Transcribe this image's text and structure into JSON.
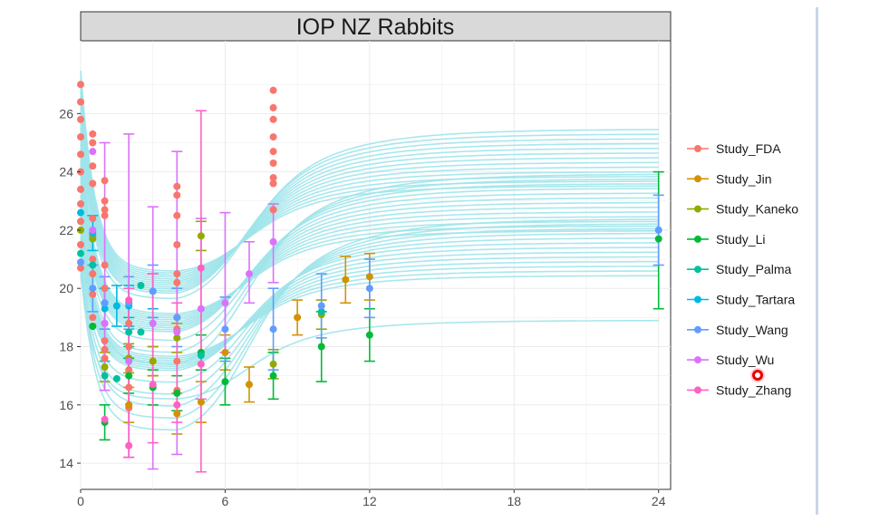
{
  "chart_data": {
    "type": "scatter",
    "title": "IOP NZ Rabbits",
    "xlabel": "",
    "ylabel": "",
    "xlim": [
      0,
      24.5
    ],
    "ylim": [
      13.1,
      28.5
    ],
    "x_ticks": [
      0,
      6,
      12,
      18,
      24
    ],
    "y_ticks": [
      14,
      16,
      18,
      20,
      22,
      24,
      26
    ],
    "grid": true,
    "legend_position": "right",
    "colors": {
      "Study_FDA": "#F8766D",
      "Study_Jin": "#D39200",
      "Study_Kaneko": "#93AA00",
      "Study_Li": "#00BA38",
      "Study_Palma": "#00C19F",
      "Study_Tartara": "#00B9E3",
      "Study_Wang": "#619CFF",
      "Study_Wu": "#DB72FB",
      "Study_Zhang": "#FF61C3",
      "curves": "#9fe4ea"
    },
    "series": [
      {
        "name": "Study_FDA",
        "points": [
          {
            "x": 0,
            "y": 27.0
          },
          {
            "x": 0,
            "y": 26.4
          },
          {
            "x": 0,
            "y": 25.8
          },
          {
            "x": 0,
            "y": 25.2
          },
          {
            "x": 0,
            "y": 24.6
          },
          {
            "x": 0,
            "y": 24.0
          },
          {
            "x": 0,
            "y": 23.4
          },
          {
            "x": 0,
            "y": 22.9
          },
          {
            "x": 0,
            "y": 22.3
          },
          {
            "x": 0,
            "y": 21.5
          },
          {
            "x": 0,
            "y": 20.7
          },
          {
            "x": 0.5,
            "y": 25.3
          },
          {
            "x": 0.5,
            "y": 25.0
          },
          {
            "x": 0.5,
            "y": 24.2
          },
          {
            "x": 0.5,
            "y": 23.6
          },
          {
            "x": 0.5,
            "y": 22.4
          },
          {
            "x": 0.5,
            "y": 21.8
          },
          {
            "x": 0.5,
            "y": 21.0
          },
          {
            "x": 0.5,
            "y": 20.5
          },
          {
            "x": 0.5,
            "y": 19.8
          },
          {
            "x": 0.5,
            "y": 19.0
          },
          {
            "x": 0.5,
            "y": 18.7
          },
          {
            "x": 1,
            "y": 23.7
          },
          {
            "x": 1,
            "y": 23.0
          },
          {
            "x": 1,
            "y": 22.7
          },
          {
            "x": 1,
            "y": 22.5
          },
          {
            "x": 1,
            "y": 20.8
          },
          {
            "x": 1,
            "y": 20.0
          },
          {
            "x": 1,
            "y": 19.5
          },
          {
            "x": 1,
            "y": 18.8
          },
          {
            "x": 1,
            "y": 18.2
          },
          {
            "x": 1,
            "y": 17.9
          },
          {
            "x": 1,
            "y": 17.6
          },
          {
            "x": 2,
            "y": 18.8
          },
          {
            "x": 2,
            "y": 18.0
          },
          {
            "x": 2,
            "y": 17.6
          },
          {
            "x": 2,
            "y": 17.2
          },
          {
            "x": 2,
            "y": 16.6
          },
          {
            "x": 2,
            "y": 15.9
          },
          {
            "x": 4,
            "y": 23.5
          },
          {
            "x": 4,
            "y": 23.2
          },
          {
            "x": 4,
            "y": 22.5
          },
          {
            "x": 4,
            "y": 21.5
          },
          {
            "x": 4,
            "y": 20.5
          },
          {
            "x": 4,
            "y": 20.2
          },
          {
            "x": 4,
            "y": 19.0
          },
          {
            "x": 4,
            "y": 18.6
          },
          {
            "x": 4,
            "y": 17.5
          },
          {
            "x": 4,
            "y": 16.5
          },
          {
            "x": 8,
            "y": 26.8
          },
          {
            "x": 8,
            "y": 26.2
          },
          {
            "x": 8,
            "y": 25.8
          },
          {
            "x": 8,
            "y": 25.2
          },
          {
            "x": 8,
            "y": 24.7
          },
          {
            "x": 8,
            "y": 24.3
          },
          {
            "x": 8,
            "y": 23.8
          },
          {
            "x": 8,
            "y": 23.6
          },
          {
            "x": 8,
            "y": 22.7
          }
        ],
        "errorbars": []
      },
      {
        "name": "Study_Jin",
        "points": [
          {
            "x": 2,
            "y": 16.0
          },
          {
            "x": 3,
            "y": 17.5
          },
          {
            "x": 4,
            "y": 15.7
          },
          {
            "x": 5,
            "y": 16.1
          },
          {
            "x": 6,
            "y": 17.8
          },
          {
            "x": 7,
            "y": 16.7
          },
          {
            "x": 9,
            "y": 19.0
          },
          {
            "x": 11,
            "y": 20.3
          },
          {
            "x": 12,
            "y": 20.4
          }
        ],
        "errorbars": [
          {
            "x": 2,
            "lo": 15.4,
            "hi": 16.6
          },
          {
            "x": 3,
            "lo": 17.0,
            "hi": 18.0
          },
          {
            "x": 4,
            "lo": 15.0,
            "hi": 16.4
          },
          {
            "x": 5,
            "lo": 15.4,
            "hi": 16.8
          },
          {
            "x": 6,
            "lo": 17.2,
            "hi": 18.4
          },
          {
            "x": 7,
            "lo": 16.1,
            "hi": 17.3
          },
          {
            "x": 9,
            "lo": 18.4,
            "hi": 19.6
          },
          {
            "x": 11,
            "lo": 19.5,
            "hi": 21.1
          },
          {
            "x": 12,
            "lo": 19.6,
            "hi": 21.2
          }
        ]
      },
      {
        "name": "Study_Kaneko",
        "points": [
          {
            "x": 0,
            "y": 22.0
          },
          {
            "x": 0.5,
            "y": 21.7
          },
          {
            "x": 1,
            "y": 17.3
          },
          {
            "x": 2,
            "y": 17.6
          },
          {
            "x": 3,
            "y": 17.5
          },
          {
            "x": 4,
            "y": 18.3
          },
          {
            "x": 5,
            "y": 21.8
          },
          {
            "x": 8,
            "y": 17.4
          },
          {
            "x": 10,
            "y": 19.1
          }
        ],
        "errorbars": [
          {
            "x": 1,
            "lo": 16.8,
            "hi": 17.8
          },
          {
            "x": 2,
            "lo": 17.1,
            "hi": 18.1
          },
          {
            "x": 3,
            "lo": 17.0,
            "hi": 18.0
          },
          {
            "x": 4,
            "lo": 17.8,
            "hi": 18.8
          },
          {
            "x": 5,
            "lo": 21.3,
            "hi": 22.3
          },
          {
            "x": 8,
            "lo": 16.9,
            "hi": 17.9
          },
          {
            "x": 10,
            "lo": 18.6,
            "hi": 19.6
          }
        ]
      },
      {
        "name": "Study_Li",
        "points": [
          {
            "x": 0.5,
            "y": 18.7
          },
          {
            "x": 1,
            "y": 15.4
          },
          {
            "x": 2,
            "y": 17.0
          },
          {
            "x": 3,
            "y": 16.6
          },
          {
            "x": 4,
            "y": 16.4
          },
          {
            "x": 5,
            "y": 17.8
          },
          {
            "x": 6,
            "y": 16.8
          },
          {
            "x": 8,
            "y": 17.0
          },
          {
            "x": 10,
            "y": 18.0
          },
          {
            "x": 12,
            "y": 18.4
          },
          {
            "x": 24,
            "y": 21.7
          }
        ],
        "errorbars": [
          {
            "x": 1,
            "lo": 14.8,
            "hi": 16.0
          },
          {
            "x": 2,
            "lo": 16.4,
            "hi": 17.6
          },
          {
            "x": 3,
            "lo": 16.0,
            "hi": 17.2
          },
          {
            "x": 4,
            "lo": 15.8,
            "hi": 17.0
          },
          {
            "x": 5,
            "lo": 17.2,
            "hi": 18.4
          },
          {
            "x": 6,
            "lo": 16.0,
            "hi": 17.6
          },
          {
            "x": 8,
            "lo": 16.2,
            "hi": 17.8
          },
          {
            "x": 10,
            "lo": 16.8,
            "hi": 19.2
          },
          {
            "x": 12,
            "lo": 17.5,
            "hi": 19.3
          },
          {
            "x": 24,
            "lo": 19.3,
            "hi": 24.0
          }
        ]
      },
      {
        "name": "Study_Palma",
        "points": [
          {
            "x": 0,
            "y": 21.2
          },
          {
            "x": 0.5,
            "y": 20.8
          },
          {
            "x": 1,
            "y": 17.0
          },
          {
            "x": 1.5,
            "y": 16.9
          },
          {
            "x": 2,
            "y": 18.5
          },
          {
            "x": 2.5,
            "y": 18.5
          },
          {
            "x": 2.5,
            "y": 20.1
          },
          {
            "x": 5,
            "y": 17.7
          },
          {
            "x": 10,
            "y": 19.2
          }
        ],
        "errorbars": [
          {
            "x": 1,
            "lo": 16.5,
            "hi": 17.5
          },
          {
            "x": 2,
            "lo": 18.0,
            "hi": 19.0
          }
        ]
      },
      {
        "name": "Study_Tartara",
        "points": [
          {
            "x": 0,
            "y": 22.6
          },
          {
            "x": 0.5,
            "y": 21.9
          },
          {
            "x": 1,
            "y": 19.3
          },
          {
            "x": 1.5,
            "y": 19.4
          },
          {
            "x": 2,
            "y": 19.4
          },
          {
            "x": 3,
            "y": 19.9
          }
        ],
        "errorbars": [
          {
            "x": 0.5,
            "lo": 21.3,
            "hi": 22.5
          },
          {
            "x": 1,
            "lo": 18.6,
            "hi": 20.0
          },
          {
            "x": 1.5,
            "lo": 18.7,
            "hi": 20.1
          },
          {
            "x": 2,
            "lo": 18.7,
            "hi": 20.1
          },
          {
            "x": 3,
            "lo": 19.3,
            "hi": 20.5
          }
        ]
      },
      {
        "name": "Study_Wang",
        "points": [
          {
            "x": 0,
            "y": 20.9
          },
          {
            "x": 0.5,
            "y": 20.0
          },
          {
            "x": 1,
            "y": 19.5
          },
          {
            "x": 2,
            "y": 19.5
          },
          {
            "x": 3,
            "y": 19.9
          },
          {
            "x": 4,
            "y": 19.0
          },
          {
            "x": 6,
            "y": 18.6
          },
          {
            "x": 8,
            "y": 18.6
          },
          {
            "x": 10,
            "y": 19.4
          },
          {
            "x": 12,
            "y": 20.0
          },
          {
            "x": 24,
            "y": 22.0
          }
        ],
        "errorbars": [
          {
            "x": 0.5,
            "lo": 19.2,
            "hi": 20.8
          },
          {
            "x": 1,
            "lo": 18.6,
            "hi": 20.4
          },
          {
            "x": 2,
            "lo": 18.6,
            "hi": 20.4
          },
          {
            "x": 3,
            "lo": 19.0,
            "hi": 20.8
          },
          {
            "x": 4,
            "lo": 18.0,
            "hi": 20.0
          },
          {
            "x": 6,
            "lo": 17.5,
            "hi": 19.7
          },
          {
            "x": 8,
            "lo": 17.2,
            "hi": 20.0
          },
          {
            "x": 10,
            "lo": 18.3,
            "hi": 20.5
          },
          {
            "x": 12,
            "lo": 19.0,
            "hi": 21.0
          },
          {
            "x": 24,
            "lo": 20.8,
            "hi": 23.2
          }
        ]
      },
      {
        "name": "Study_Wu",
        "points": [
          {
            "x": 0.5,
            "y": 24.7
          },
          {
            "x": 0.5,
            "y": 22.0
          },
          {
            "x": 1,
            "y": 18.8
          },
          {
            "x": 2,
            "y": 17.5
          },
          {
            "x": 3,
            "y": 18.8
          },
          {
            "x": 4,
            "y": 18.5
          },
          {
            "x": 5,
            "y": 19.3
          },
          {
            "x": 6,
            "y": 19.5
          },
          {
            "x": 7,
            "y": 20.5
          },
          {
            "x": 8,
            "y": 21.6
          }
        ],
        "errorbars": [
          {
            "x": 1,
            "lo": 16.5,
            "hi": 25.0
          },
          {
            "x": 2,
            "lo": 14.2,
            "hi": 25.3
          },
          {
            "x": 3,
            "lo": 13.8,
            "hi": 22.8
          },
          {
            "x": 4,
            "lo": 14.3,
            "hi": 24.7
          },
          {
            "x": 5,
            "lo": 16.2,
            "hi": 22.4
          },
          {
            "x": 6,
            "lo": 17.8,
            "hi": 22.6
          },
          {
            "x": 7,
            "lo": 19.5,
            "hi": 21.6
          },
          {
            "x": 8,
            "lo": 20.2,
            "hi": 22.9
          }
        ]
      },
      {
        "name": "Study_Zhang",
        "points": [
          {
            "x": 1,
            "y": 15.5
          },
          {
            "x": 2,
            "y": 14.6
          },
          {
            "x": 2,
            "y": 19.6
          },
          {
            "x": 3,
            "y": 16.7
          },
          {
            "x": 4,
            "y": 16.0
          },
          {
            "x": 5,
            "y": 20.7
          },
          {
            "x": 5,
            "y": 17.4
          }
        ],
        "errorbars": [
          {
            "x": 2,
            "lo": 14.2,
            "hi": 20.0
          },
          {
            "x": 3,
            "lo": 14.7,
            "hi": 20.5
          },
          {
            "x": 4,
            "lo": 15.4,
            "hi": 19.5
          },
          {
            "x": 5,
            "lo": 13.7,
            "hi": 26.1
          }
        ]
      }
    ],
    "curves": {
      "baseline_range": [
        20.5,
        27.5
      ],
      "dip_depth_range": [
        2.7,
        5.7
      ],
      "plateau_range": [
        18.9,
        26.8
      ],
      "count": 40
    }
  },
  "legend": {
    "items": [
      "Study_FDA",
      "Study_Jin",
      "Study_Kaneko",
      "Study_Li",
      "Study_Palma",
      "Study_Tartara",
      "Study_Wang",
      "Study_Wu",
      "Study_Zhang"
    ]
  }
}
